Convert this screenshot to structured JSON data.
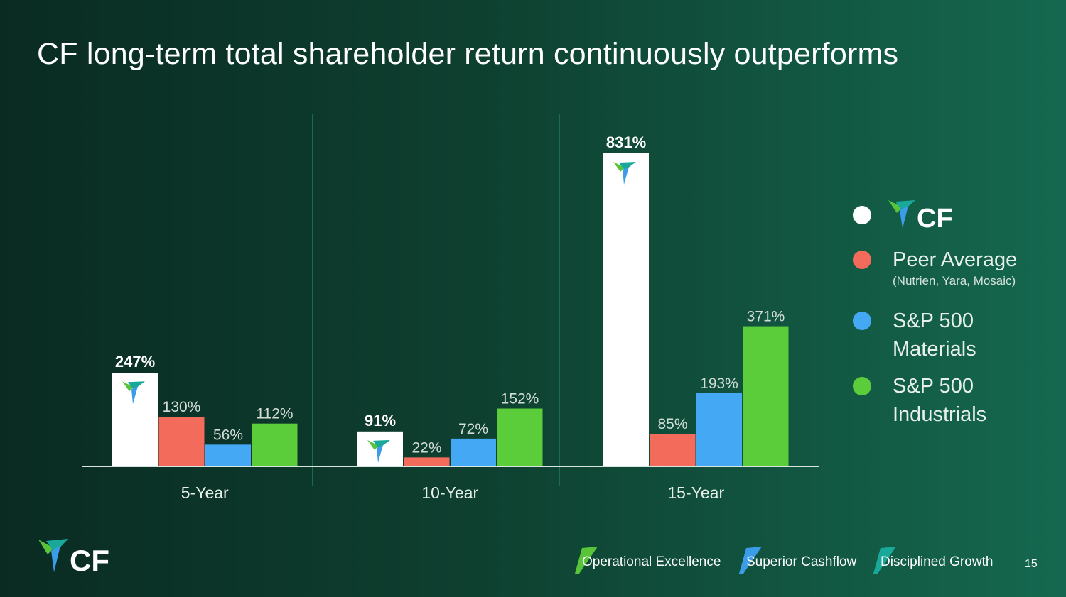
{
  "slide": {
    "title": "CF long-term total shareholder return continuously outperforms",
    "page_number": "15"
  },
  "colors": {
    "cf": "#ffffff",
    "peer": "#f26b5b",
    "materials": "#45a8f5",
    "industrials": "#5bcc3a",
    "logo_green": "#58c43a",
    "logo_teal": "#1aa89a",
    "logo_blue": "#3b9ce8"
  },
  "legend": {
    "items": [
      {
        "label": "CF",
        "sub": "",
        "color_key": "cf",
        "icon": "cf-logo-icon"
      },
      {
        "label": "Peer Average",
        "sub": "(Nutrien, Yara, Mosaic)",
        "color_key": "peer"
      },
      {
        "label_line1": "S&P 500",
        "label_line2": "Materials",
        "color_key": "materials"
      },
      {
        "label_line1": "S&P 500",
        "label_line2": "Industrials",
        "color_key": "industrials"
      }
    ]
  },
  "footer": {
    "logo_text": "CF",
    "pillars": [
      {
        "label": "Operational Excellence",
        "color": "#58c43a"
      },
      {
        "label": "Superior Cashflow",
        "color": "#3b9ce8"
      },
      {
        "label": "Disciplined Growth",
        "color": "#1aa89a"
      }
    ]
  },
  "chart_data": {
    "type": "bar",
    "categories": [
      "5-Year",
      "10-Year",
      "15-Year"
    ],
    "series": [
      {
        "name": "CF",
        "values": [
          247,
          91,
          831
        ],
        "labels": [
          "247%",
          "91%",
          "831%"
        ],
        "color_key": "cf"
      },
      {
        "name": "Peer Average",
        "values": [
          130,
          22,
          85
        ],
        "labels": [
          "130%",
          "22%",
          "85%"
        ],
        "color_key": "peer"
      },
      {
        "name": "S&P 500 Materials",
        "values": [
          56,
          72,
          193
        ],
        "labels": [
          "56%",
          "72%",
          "193%"
        ],
        "color_key": "materials"
      },
      {
        "name": "S&P 500 Industrials",
        "values": [
          112,
          152,
          371
        ],
        "labels": [
          "112%",
          "152%",
          "371%"
        ],
        "color_key": "industrials"
      }
    ],
    "title": "CF long-term total shareholder return continuously outperforms",
    "xlabel": "",
    "ylabel": "",
    "ylim": [
      0,
      831
    ],
    "grid": false,
    "legend_position": "right"
  }
}
